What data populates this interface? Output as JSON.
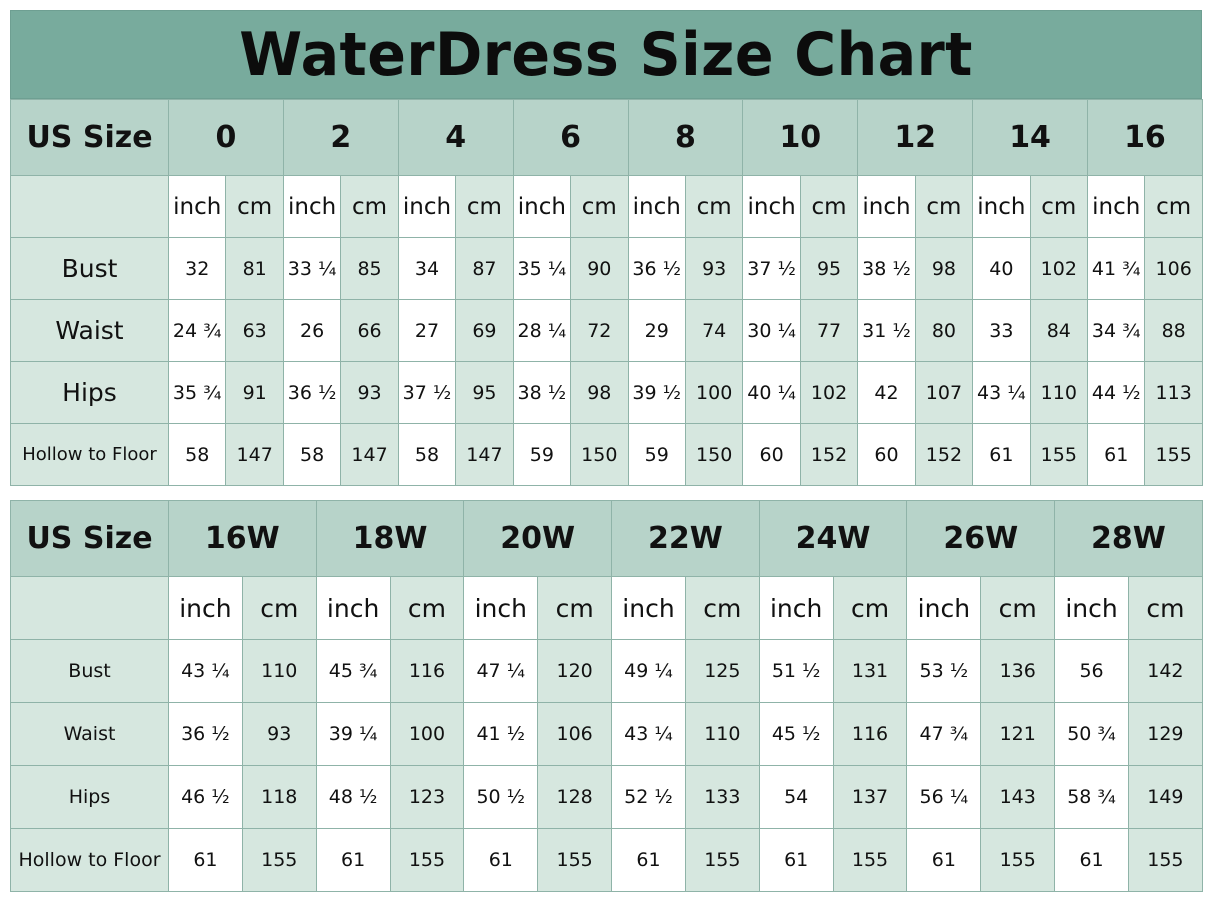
{
  "title": "WaterDress Size Chart",
  "tables": [
    {
      "size_header": "US Size",
      "sizes": [
        "0",
        "2",
        "4",
        "6",
        "8",
        "10",
        "12",
        "14",
        "16"
      ],
      "units": [
        "inch",
        "cm"
      ],
      "rows": [
        {
          "label": "Bust",
          "values": [
            [
              "32",
              "81"
            ],
            [
              "33 ¼",
              "85"
            ],
            [
              "34",
              "87"
            ],
            [
              "35 ¼",
              "90"
            ],
            [
              "36 ½",
              "93"
            ],
            [
              "37 ½",
              "95"
            ],
            [
              "38 ½",
              "98"
            ],
            [
              "40",
              "102"
            ],
            [
              "41 ¾",
              "106"
            ]
          ]
        },
        {
          "label": "Waist",
          "values": [
            [
              "24 ¾",
              "63"
            ],
            [
              "26",
              "66"
            ],
            [
              "27",
              "69"
            ],
            [
              "28 ¼",
              "72"
            ],
            [
              "29",
              "74"
            ],
            [
              "30 ¼",
              "77"
            ],
            [
              "31 ½",
              "80"
            ],
            [
              "33",
              "84"
            ],
            [
              "34 ¾",
              "88"
            ]
          ]
        },
        {
          "label": "Hips",
          "values": [
            [
              "35 ¾",
              "91"
            ],
            [
              "36 ½",
              "93"
            ],
            [
              "37 ½",
              "95"
            ],
            [
              "38 ½",
              "98"
            ],
            [
              "39 ½",
              "100"
            ],
            [
              "40 ¼",
              "102"
            ],
            [
              "42",
              "107"
            ],
            [
              "43 ¼",
              "110"
            ],
            [
              "44 ½",
              "113"
            ]
          ]
        },
        {
          "label": "Hollow to Floor",
          "values": [
            [
              "58",
              "147"
            ],
            [
              "58",
              "147"
            ],
            [
              "58",
              "147"
            ],
            [
              "59",
              "150"
            ],
            [
              "59",
              "150"
            ],
            [
              "60",
              "152"
            ],
            [
              "60",
              "152"
            ],
            [
              "61",
              "155"
            ],
            [
              "61",
              "155"
            ]
          ]
        }
      ]
    },
    {
      "size_header": "US Size",
      "sizes": [
        "16W",
        "18W",
        "20W",
        "22W",
        "24W",
        "26W",
        "28W"
      ],
      "units": [
        "inch",
        "cm"
      ],
      "rows": [
        {
          "label": "Bust",
          "values": [
            [
              "43 ¼",
              "110"
            ],
            [
              "45 ¾",
              "116"
            ],
            [
              "47 ¼",
              "120"
            ],
            [
              "49 ¼",
              "125"
            ],
            [
              "51 ½",
              "131"
            ],
            [
              "53 ½",
              "136"
            ],
            [
              "56",
              "142"
            ]
          ]
        },
        {
          "label": "Waist",
          "values": [
            [
              "36 ½",
              "93"
            ],
            [
              "39 ¼",
              "100"
            ],
            [
              "41 ½",
              "106"
            ],
            [
              "43 ¼",
              "110"
            ],
            [
              "45 ½",
              "116"
            ],
            [
              "47 ¾",
              "121"
            ],
            [
              "50 ¾",
              "129"
            ]
          ]
        },
        {
          "label": "Hips",
          "values": [
            [
              "46 ½",
              "118"
            ],
            [
              "48 ½",
              "123"
            ],
            [
              "50 ½",
              "128"
            ],
            [
              "52 ½",
              "133"
            ],
            [
              "54",
              "137"
            ],
            [
              "56 ¼",
              "143"
            ],
            [
              "58 ¾",
              "149"
            ]
          ]
        },
        {
          "label": "Hollow to Floor",
          "values": [
            [
              "61",
              "155"
            ],
            [
              "61",
              "155"
            ],
            [
              "61",
              "155"
            ],
            [
              "61",
              "155"
            ],
            [
              "61",
              "155"
            ],
            [
              "61",
              "155"
            ],
            [
              "61",
              "155"
            ]
          ]
        }
      ]
    }
  ],
  "colors": {
    "title_bg": "#78ab9d",
    "header_bg": "#b7d3c9",
    "label_bg": "#d6e7df",
    "cm_bg": "#d6e7df",
    "inch_bg": "#ffffff",
    "border": "#8fb3a8"
  }
}
